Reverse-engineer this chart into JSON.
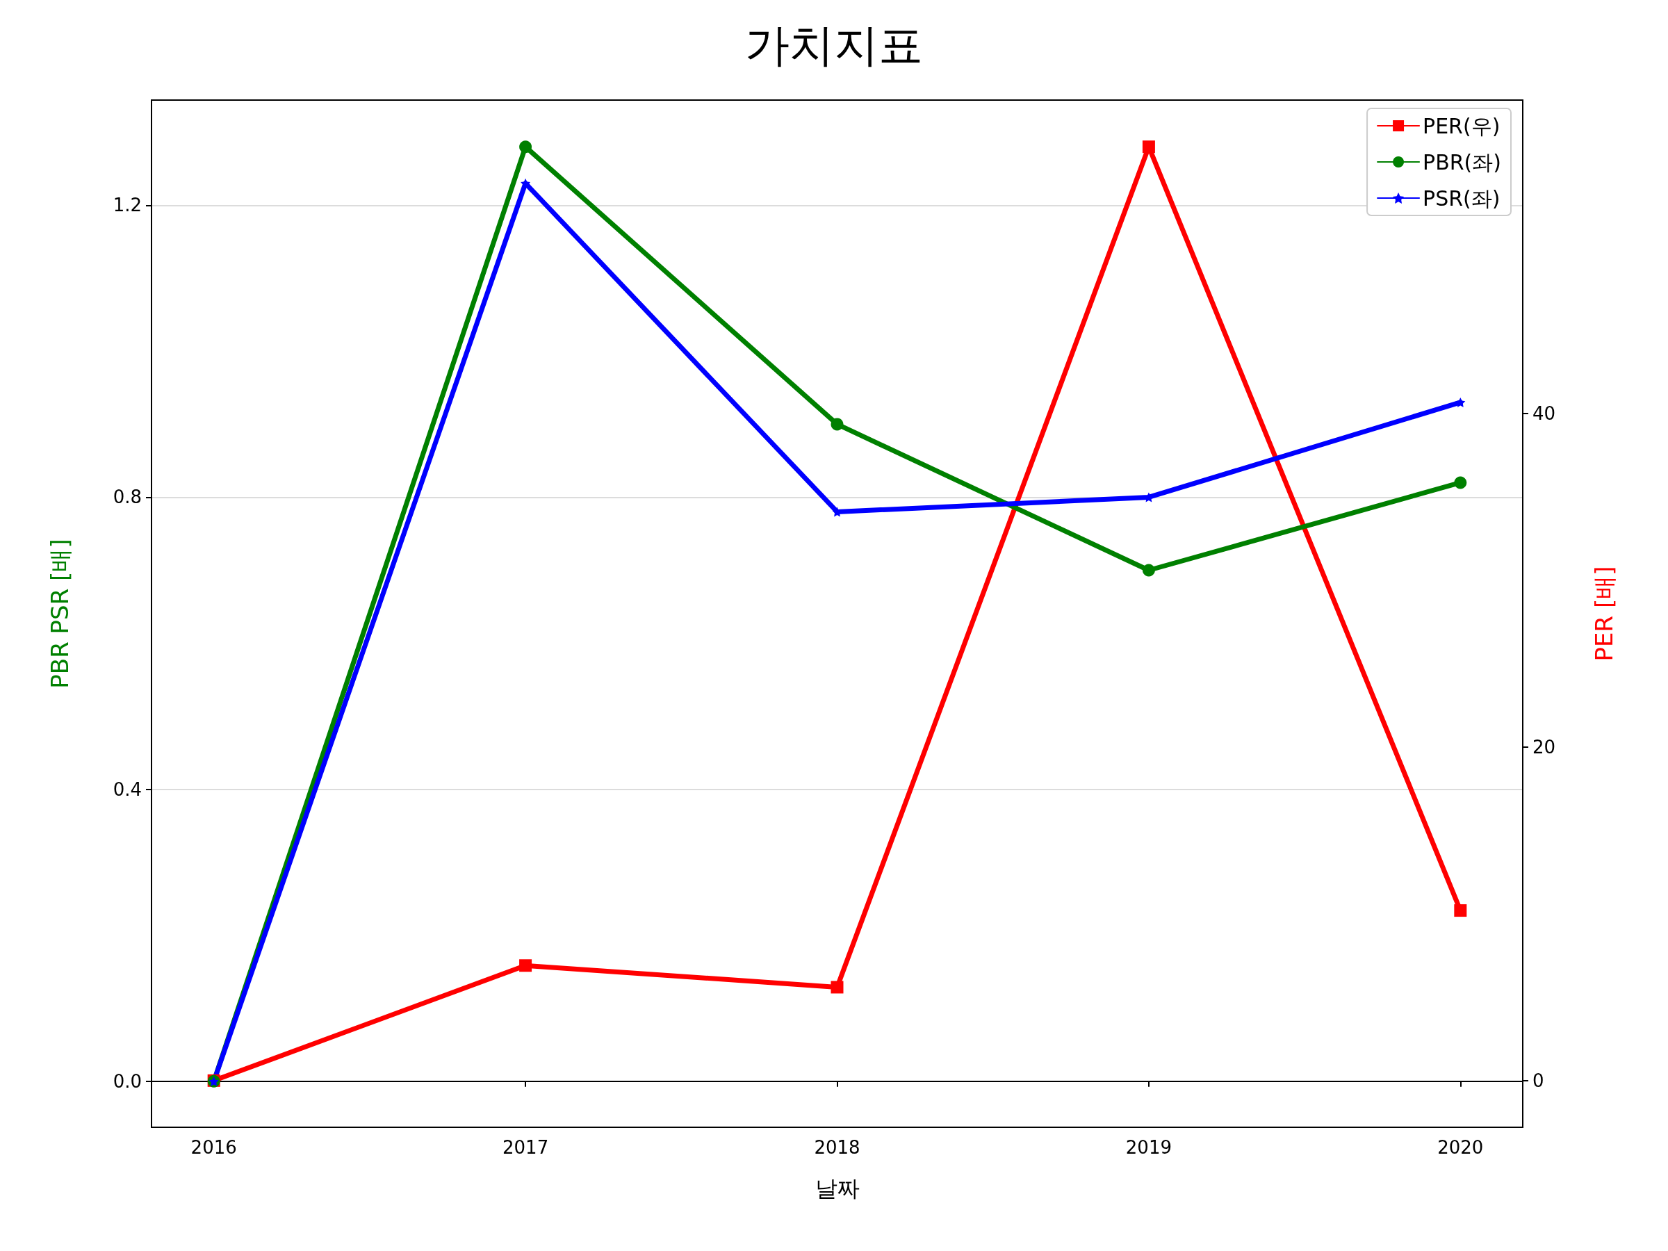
{
  "chart_data": {
    "type": "line",
    "title": "가치지표",
    "xlabel": "날짜",
    "ylabel": "PBR PSR [배]",
    "y2label": "PER [배]",
    "x": [
      2016,
      2017,
      2018,
      2019,
      2020
    ],
    "xlim": [
      2015.8,
      2020.2
    ],
    "xticks": [
      2016,
      2017,
      2018,
      2019,
      2020
    ],
    "ylim": [
      -0.063,
      1.344
    ],
    "yticks": [
      {
        "value": 0,
        "label": "0.0"
      },
      0.4,
      0.8,
      1.2
    ],
    "y2lim": [
      -2.8,
      58.8
    ],
    "y2ticks": [
      0,
      20,
      40
    ],
    "grid": "y",
    "legend": "top right",
    "line_style": "solid",
    "series": [
      {
        "name": "PER(우)",
        "color": "#ff0000",
        "axis": "y2",
        "marker": "square",
        "values": [
          0,
          6.9,
          5.6,
          56.0,
          10.2
        ]
      },
      {
        "name": "PBR(좌)",
        "color": "#008000",
        "marker": "circle",
        "values": [
          0,
          1.28,
          0.9,
          0.7,
          0.82
        ]
      },
      {
        "name": "PSR(좌)",
        "color": "#0000ff",
        "marker": "star",
        "values": [
          0,
          1.23,
          0.78,
          0.8,
          0.93
        ]
      }
    ]
  }
}
